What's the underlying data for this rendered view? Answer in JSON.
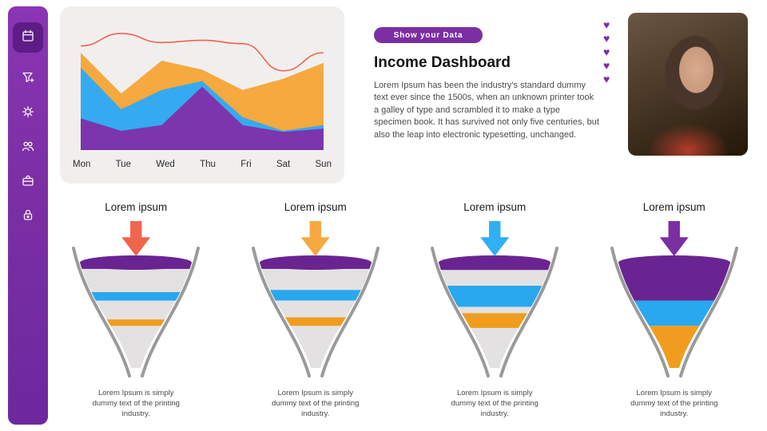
{
  "sidebar": {
    "items": [
      {
        "icon": "calendar-icon",
        "active": true
      },
      {
        "icon": "filter-plus-icon",
        "active": false
      },
      {
        "icon": "settings-icon",
        "active": false
      },
      {
        "icon": "users-icon",
        "active": false
      },
      {
        "icon": "briefcase-icon",
        "active": false
      },
      {
        "icon": "lock-icon",
        "active": false
      }
    ],
    "color": "#7b2fa3"
  },
  "header": {
    "badge_label": "Show your Data",
    "title": "Income Dashboard",
    "description": "Lorem Ipsum has been the industry's standard dummy text ever since the 1500s, when an unknown printer took a galley of type and scrambled it to make a type specimen book. It has survived not only five centuries, but also the leap into electronic typesetting, unchanged.",
    "hearts_count": 5,
    "accent_color": "#7b2fa3"
  },
  "chart_data": {
    "type": "area",
    "categories": [
      "Mon",
      "Tue",
      "Wed",
      "Thu",
      "Fri",
      "Sat",
      "Sun"
    ],
    "series": [
      {
        "name": "layer-bottom",
        "kind": "area",
        "color": "#7c35ad",
        "values": [
          28,
          17,
          22,
          56,
          22,
          16,
          19
        ]
      },
      {
        "name": "layer-middle",
        "kind": "area",
        "color": "#35aaf0",
        "values": [
          73,
          36,
          53,
          61,
          29,
          17,
          22
        ]
      },
      {
        "name": "layer-top",
        "kind": "area",
        "color": "#f5a93e",
        "values": [
          86,
          50,
          79,
          71,
          53,
          63,
          77
        ]
      },
      {
        "name": "trend-line",
        "kind": "line",
        "color": "#ef6351",
        "values": [
          92,
          103,
          95,
          97,
          94,
          70,
          86
        ]
      }
    ],
    "ylim": [
      0,
      110
    ],
    "grid": false,
    "legend": "none",
    "note": "area values are cumulative stacked top edges"
  },
  "funnels": [
    {
      "title": "Lorem ipsum",
      "arrow_color": "#f0654e",
      "caption": "Lorem Ipsum is simply dummy text of the printing industry.",
      "bands": [
        {
          "color": "#6a2491",
          "from": 0,
          "to": 0.06
        },
        {
          "color": "#29a8ef",
          "from": 0.28,
          "to": 0.36
        },
        {
          "color": "#f09d1f",
          "from": 0.54,
          "to": 0.6
        }
      ]
    },
    {
      "title": "Lorem ipsum",
      "arrow_color": "#f5a93e",
      "caption": "Lorem Ipsum is simply dummy text of the printing industry.",
      "bands": [
        {
          "color": "#6a2491",
          "from": 0,
          "to": 0.06
        },
        {
          "color": "#29a8ef",
          "from": 0.26,
          "to": 0.36
        },
        {
          "color": "#f09d1f",
          "from": 0.52,
          "to": 0.6
        }
      ]
    },
    {
      "title": "Lorem ipsum",
      "arrow_color": "#2fb0f2",
      "caption": "Lorem Ipsum is simply dummy text of the printing industry.",
      "bands": [
        {
          "color": "#6a2491",
          "from": 0,
          "to": 0.07
        },
        {
          "color": "#29a8ef",
          "from": 0.22,
          "to": 0.42
        },
        {
          "color": "#f09d1f",
          "from": 0.48,
          "to": 0.62
        }
      ]
    },
    {
      "title": "Lorem ipsum",
      "arrow_color": "#7b2fa3",
      "caption": "Lorem Ipsum is simply dummy text of the printing industry.",
      "bands": [
        {
          "color": "#6a2491",
          "from": 0,
          "to": 0.36
        },
        {
          "color": "#29a8ef",
          "from": 0.36,
          "to": 0.6
        },
        {
          "color": "#f09d1f",
          "from": 0.6,
          "to": 1.0
        }
      ]
    }
  ]
}
